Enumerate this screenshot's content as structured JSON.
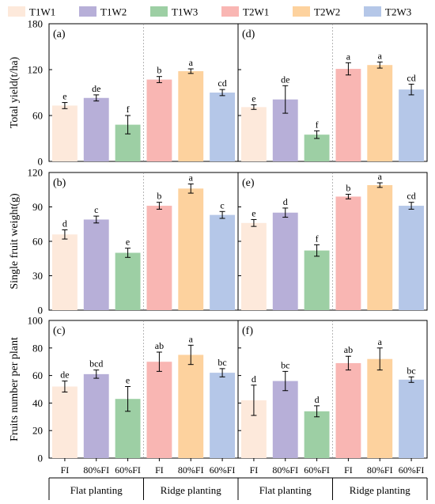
{
  "chart_data": {
    "type": "bar",
    "legend": {
      "placement": "top",
      "entries": [
        {
          "name": "T1W1",
          "color": "#FDE9DB"
        },
        {
          "name": "T1W2",
          "color": "#B7AFD8"
        },
        {
          "name": "T1W3",
          "color": "#9DCFA4"
        },
        {
          "name": "T2W1",
          "color": "#F9B6B3"
        },
        {
          "name": "T2W2",
          "color": "#FDD29E"
        },
        {
          "name": "T2W3",
          "color": "#B5C7E8"
        }
      ]
    },
    "categories": [
      "FI",
      "80%FI",
      "60%FI",
      "FI",
      "80%FI",
      "60%FI"
    ],
    "groups": [
      "Flat planting",
      "Ridge planting"
    ],
    "rows": [
      {
        "ylabel": "Total yield(t/ha)",
        "ylim": [
          0,
          180
        ],
        "yticks": [
          "0",
          "60",
          "120",
          "180"
        ],
        "panels": [
          {
            "label": "(a)",
            "values": [
              73,
              83,
              48,
              107,
              118,
              90
            ],
            "errors": [
              4,
              4,
              12,
              4,
              3,
              4
            ],
            "letters": [
              "e",
              "de",
              "f",
              "b",
              "a",
              "cd"
            ]
          },
          {
            "label": "(d)",
            "values": [
              71,
              81,
              35,
              121,
              126,
              94
            ],
            "errors": [
              3,
              18,
              5,
              8,
              4,
              7
            ],
            "letters": [
              "e",
              "de",
              "f",
              "a",
              "a",
              "cd"
            ]
          }
        ]
      },
      {
        "ylabel": "Single fruit weight(g)",
        "ylim": [
          0,
          120
        ],
        "yticks": [
          "0",
          "30",
          "60",
          "90",
          "120"
        ],
        "panels": [
          {
            "label": "(b)",
            "values": [
              66,
              79,
              50,
              91,
              106,
              83
            ],
            "errors": [
              4,
              3,
              4,
              3,
              4,
              3
            ],
            "letters": [
              "d",
              "c",
              "e",
              "b",
              "a",
              "c"
            ]
          },
          {
            "label": "(e)",
            "values": [
              76,
              85,
              52,
              99,
              109,
              91
            ],
            "errors": [
              3,
              4,
              5,
              2,
              2,
              3
            ],
            "letters": [
              "e",
              "d",
              "f",
              "b",
              "a",
              "cd"
            ]
          }
        ]
      },
      {
        "ylabel": "Fruits number per plant",
        "ylim": [
          0,
          100
        ],
        "yticks": [
          "0",
          "20",
          "40",
          "60",
          "80",
          "100"
        ],
        "panels": [
          {
            "label": "(c)",
            "values": [
              52,
              61,
              43,
              70,
              75,
              62
            ],
            "errors": [
              4,
              3,
              9,
              7,
              7,
              3
            ],
            "letters": [
              "de",
              "bcd",
              "e",
              "ab",
              "a",
              "bc"
            ]
          },
          {
            "label": "(f)",
            "values": [
              42,
              56,
              34,
              69,
              72,
              57
            ],
            "errors": [
              11,
              7,
              4,
              5,
              8,
              2
            ],
            "letters": [
              "d",
              "bc",
              "d",
              "ab",
              "a",
              "bc"
            ]
          }
        ]
      }
    ]
  }
}
